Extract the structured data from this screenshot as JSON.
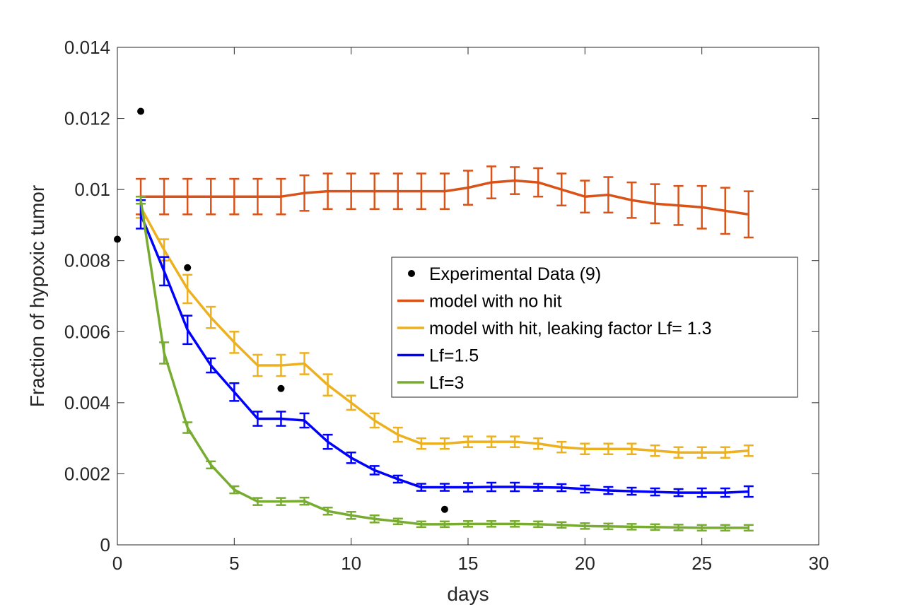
{
  "chart_data": {
    "type": "line",
    "title": "",
    "xlabel": "days",
    "ylabel": "Fraction of hypoxic tumor",
    "xlim": [
      0,
      30
    ],
    "ylim": [
      0,
      0.014
    ],
    "xticks": [
      "0",
      "5",
      "10",
      "15",
      "20",
      "25",
      "30"
    ],
    "yticks": [
      "0",
      "0.002",
      "0.004",
      "0.006",
      "0.008",
      "0.01",
      "0.012",
      "0.014"
    ],
    "grid": false,
    "legend_position": "center-right",
    "x": [
      1,
      2,
      3,
      4,
      5,
      6,
      7,
      8,
      9,
      10,
      11,
      12,
      13,
      14,
      15,
      16,
      17,
      18,
      19,
      20,
      21,
      22,
      23,
      24,
      25,
      26,
      27
    ],
    "scatter": {
      "name": "Experimental Data (9)",
      "color": "#000000",
      "x": [
        0,
        1,
        3,
        7,
        14
      ],
      "y": [
        0.0086,
        0.0122,
        0.0078,
        0.0044,
        0.001
      ]
    },
    "series": [
      {
        "name": "model with no hit",
        "color": "#D95319",
        "values": [
          0.0098,
          0.0098,
          0.0098,
          0.0098,
          0.0098,
          0.0098,
          0.0098,
          0.0099,
          0.00995,
          0.00995,
          0.00995,
          0.00995,
          0.00995,
          0.00995,
          0.01005,
          0.0102,
          0.01025,
          0.0102,
          0.01,
          0.0098,
          0.00985,
          0.0097,
          0.0096,
          0.00955,
          0.0095,
          0.0094,
          0.0093
        ],
        "errors": [
          0.0005,
          0.0005,
          0.0005,
          0.0005,
          0.0005,
          0.0005,
          0.0005,
          0.0005,
          0.0005,
          0.0005,
          0.0005,
          0.0005,
          0.0005,
          0.0005,
          0.00048,
          0.00045,
          0.00038,
          0.0004,
          0.00045,
          0.00045,
          0.0005,
          0.0005,
          0.00055,
          0.00055,
          0.0006,
          0.00065,
          0.00065
        ]
      },
      {
        "name": "model with hit, leaking factor Lf= 1.3",
        "color": "#EDB120",
        "values": [
          0.0095,
          0.0083,
          0.0072,
          0.0064,
          0.0057,
          0.00505,
          0.00505,
          0.0051,
          0.0045,
          0.004,
          0.0035,
          0.0031,
          0.00285,
          0.00285,
          0.0029,
          0.0029,
          0.0029,
          0.00285,
          0.00275,
          0.0027,
          0.0027,
          0.0027,
          0.00265,
          0.0026,
          0.0026,
          0.0026,
          0.00265
        ],
        "errors": [
          0.0003,
          0.0003,
          0.0004,
          0.0003,
          0.0003,
          0.0003,
          0.0003,
          0.0003,
          0.0003,
          0.0002,
          0.0002,
          0.0002,
          0.00015,
          0.00015,
          0.00015,
          0.00015,
          0.00015,
          0.00015,
          0.00015,
          0.00015,
          0.00015,
          0.00015,
          0.00015,
          0.00015,
          0.00015,
          0.00015,
          0.00015
        ]
      },
      {
        "name": "Lf=1.5",
        "color": "#0000FF",
        "values": [
          0.0093,
          0.0077,
          0.00605,
          0.00505,
          0.0043,
          0.00355,
          0.00355,
          0.0035,
          0.0029,
          0.00245,
          0.0021,
          0.00185,
          0.00162,
          0.00162,
          0.00162,
          0.00163,
          0.00163,
          0.00162,
          0.00161,
          0.00157,
          0.00153,
          0.00151,
          0.00149,
          0.00147,
          0.00147,
          0.00147,
          0.0015
        ],
        "errors": [
          0.0004,
          0.0004,
          0.0004,
          0.0002,
          0.00025,
          0.0002,
          0.0002,
          0.0002,
          0.0002,
          0.00015,
          0.00012,
          0.0001,
          0.0001,
          0.0001,
          0.00012,
          0.00012,
          0.00012,
          0.0001,
          0.0001,
          0.0001,
          0.0001,
          0.0001,
          0.0001,
          0.0001,
          0.00012,
          0.00012,
          0.00015
        ]
      },
      {
        "name": "Lf=3",
        "color": "#77AC30",
        "values": [
          0.0097,
          0.0054,
          0.0033,
          0.00225,
          0.00155,
          0.00122,
          0.00122,
          0.00123,
          0.00095,
          0.00083,
          0.00073,
          0.00066,
          0.00058,
          0.00058,
          0.00059,
          0.00059,
          0.00059,
          0.00058,
          0.00056,
          0.00053,
          0.00052,
          0.00051,
          0.0005,
          0.00049,
          0.00048,
          0.00048,
          0.00048
        ],
        "errors": [
          0.0001,
          0.0003,
          0.00015,
          0.0001,
          0.0001,
          0.0001,
          0.0001,
          0.0001,
          0.0001,
          0.0001,
          0.0001,
          8e-05,
          8e-05,
          8e-05,
          8e-05,
          8e-05,
          8e-05,
          8e-05,
          8e-05,
          8e-05,
          8e-05,
          8e-05,
          8e-05,
          8e-05,
          8e-05,
          8e-05,
          8e-05
        ]
      }
    ]
  }
}
